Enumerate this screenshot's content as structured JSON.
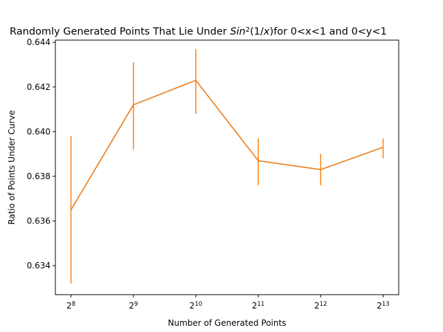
{
  "chart_data": {
    "type": "line",
    "title": {
      "prefix": "Randomly Generated Points That Lie Under ",
      "func_base": "Sin",
      "func_exp": "2",
      "func_arg": "(1/",
      "func_var": "x",
      "func_close": ")",
      "suffix": "for 0<x<1 and 0<y<1"
    },
    "xlabel": "Number of Generated Points",
    "ylabel": "Ratio of Points Under Curve",
    "x_scale": "log2",
    "x_ticks": [
      {
        "base": "2",
        "exp": "8"
      },
      {
        "base": "2",
        "exp": "9"
      },
      {
        "base": "2",
        "exp": "10"
      },
      {
        "base": "2",
        "exp": "11"
      },
      {
        "base": "2",
        "exp": "12"
      },
      {
        "base": "2",
        "exp": "13"
      }
    ],
    "y_ticks": [
      "0.634",
      "0.636",
      "0.638",
      "0.640",
      "0.642",
      "0.644"
    ],
    "ylim": [
      0.6327,
      0.6441
    ],
    "colors": {
      "line": "#1f77b4",
      "error": "#ff7f0e"
    },
    "series": [
      {
        "x": [
          256,
          512,
          1024,
          2048,
          4096,
          8192
        ],
        "y": [
          0.6365,
          0.6412,
          0.6423,
          0.6387,
          0.6383,
          0.6393
        ],
        "yerr_low": [
          0.6332,
          0.6392,
          0.6408,
          0.6376,
          0.6376,
          0.6388
        ],
        "yerr_high": [
          0.6398,
          0.6431,
          0.6437,
          0.6397,
          0.639,
          0.6397
        ]
      }
    ]
  }
}
